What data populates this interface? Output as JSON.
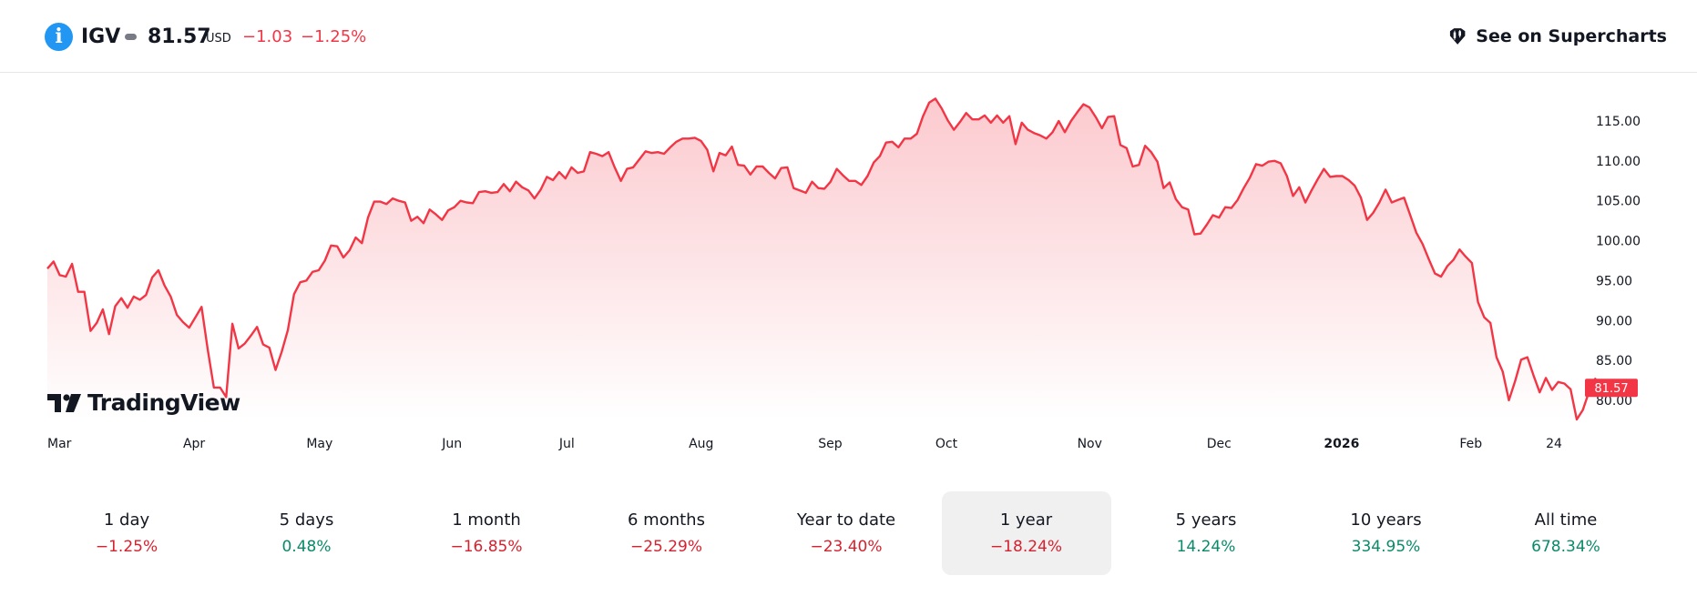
{
  "header": {
    "symbol": "IGV",
    "price": "81.57",
    "currency": "USD",
    "change": "−1.03",
    "change_pct": "−1.25%",
    "supercharts_label": "See on Supercharts",
    "info_icon": "i"
  },
  "branding": {
    "logo_text": "TradingView"
  },
  "colors": {
    "line": "#f23645",
    "fill_top": "#fbc7cc",
    "negative": "#d6212f",
    "positive": "#0a8a6a",
    "info": "#2196f3"
  },
  "chart_data": {
    "type": "area",
    "title": "",
    "xlabel": "",
    "ylabel": "",
    "ylim": [
      77,
      118.5
    ],
    "y_ticks": [
      "115.00",
      "110.00",
      "105.00",
      "100.00",
      "95.00",
      "90.00",
      "85.00",
      "80.00"
    ],
    "y_tick_values": [
      115,
      110,
      105,
      100,
      95,
      90,
      85,
      80
    ],
    "x_ticks": [
      {
        "label": "Mar",
        "i": 0
      },
      {
        "label": "Apr",
        "i": 22
      },
      {
        "label": "May",
        "i": 42
      },
      {
        "label": "Jun",
        "i": 64
      },
      {
        "label": "Jul",
        "i": 83
      },
      {
        "label": "Aug",
        "i": 104
      },
      {
        "label": "Sep",
        "i": 125
      },
      {
        "label": "Oct",
        "i": 144
      },
      {
        "label": "Nov",
        "i": 167
      },
      {
        "label": "Dec",
        "i": 188
      },
      {
        "label": "2026",
        "i": 207,
        "bold": true
      },
      {
        "label": "Feb",
        "i": 229
      },
      {
        "label": "24",
        "i": 243
      }
    ],
    "last_value_label": "81.57",
    "series": [
      {
        "values": [
          96.5,
          97.4,
          95.7,
          95.5,
          97.1,
          93.6,
          93.6,
          88.7,
          89.7,
          91.4,
          88.3,
          91.8,
          92.8,
          91.6,
          93.0,
          92.6,
          93.2,
          95.4,
          96.3,
          94.4,
          93.0,
          90.7,
          89.8,
          89.1,
          90.4,
          91.7,
          86.4,
          81.6,
          81.6,
          80.4,
          89.6,
          86.5,
          87.1,
          88.1,
          89.2,
          87.0,
          86.6,
          83.8,
          86.1,
          88.8,
          93.3,
          94.8,
          95.0,
          96.1,
          96.3,
          97.5,
          99.4,
          99.3,
          97.9,
          98.8,
          100.4,
          99.7,
          102.9,
          104.9,
          104.9,
          104.6,
          105.3,
          105.0,
          104.8,
          102.5,
          103.0,
          102.2,
          103.9,
          103.3,
          102.6,
          103.8,
          104.2,
          105.0,
          104.8,
          104.7,
          106.1,
          106.2,
          106.0,
          106.1,
          107.1,
          106.2,
          107.4,
          106.7,
          106.3,
          105.3,
          106.4,
          108.0,
          107.6,
          108.6,
          107.8,
          109.2,
          108.5,
          108.7,
          111.1,
          110.9,
          110.6,
          111.1,
          109.2,
          107.5,
          109.0,
          109.2,
          110.2,
          111.2,
          111.0,
          111.1,
          110.9,
          111.7,
          112.4,
          112.8,
          112.8,
          112.9,
          112.5,
          111.4,
          108.7,
          111.0,
          110.7,
          111.8,
          109.5,
          109.4,
          108.3,
          109.3,
          109.3,
          108.5,
          107.8,
          109.1,
          109.2,
          106.6,
          106.3,
          106.0,
          107.4,
          106.6,
          106.5,
          107.4,
          109.0,
          108.2,
          107.5,
          107.5,
          107.0,
          108.1,
          109.8,
          110.6,
          112.3,
          112.4,
          111.7,
          112.8,
          112.8,
          113.4,
          115.6,
          117.3,
          117.8,
          116.6,
          115.1,
          113.9,
          114.9,
          116.0,
          115.2,
          115.2,
          115.7,
          114.8,
          115.7,
          114.8,
          115.6,
          112.1,
          114.8,
          113.9,
          113.5,
          113.2,
          112.8,
          113.6,
          115.0,
          113.6,
          115.0,
          116.1,
          117.1,
          116.7,
          115.5,
          114.1,
          115.5,
          115.6,
          112.0,
          111.6,
          109.3,
          109.5,
          111.9,
          111.1,
          109.9,
          106.6,
          107.3,
          105.2,
          104.2,
          103.9,
          100.8,
          100.9,
          102.0,
          103.2,
          102.9,
          104.2,
          104.1,
          105.1,
          106.6,
          107.9,
          109.6,
          109.4,
          109.9,
          110.0,
          109.7,
          108.1,
          105.6,
          106.7,
          104.8,
          106.3,
          107.7,
          109.0,
          108.0,
          108.1,
          108.1,
          107.6,
          106.9,
          105.4,
          102.6,
          103.5,
          104.8,
          106.4,
          104.8,
          105.1,
          105.4,
          103.2,
          101.0,
          99.6,
          97.7,
          95.9,
          95.5,
          96.8,
          97.6,
          98.9,
          98.0,
          97.2,
          92.3,
          90.4,
          89.7,
          85.4,
          83.6,
          80.0,
          82.4,
          85.1,
          85.4,
          83.1,
          81.0,
          82.8,
          81.3,
          82.3,
          82.1,
          81.4,
          77.6,
          78.8,
          81.1,
          82.7,
          81.57
        ]
      }
    ],
    "grid": false,
    "legend": "none"
  },
  "periods": [
    {
      "label": "1 day",
      "value": "−1.25%",
      "trend": "neg",
      "active": false
    },
    {
      "label": "5 days",
      "value": "0.48%",
      "trend": "pos",
      "active": false
    },
    {
      "label": "1 month",
      "value": "−16.85%",
      "trend": "neg",
      "active": false
    },
    {
      "label": "6 months",
      "value": "−25.29%",
      "trend": "neg",
      "active": false
    },
    {
      "label": "Year to date",
      "value": "−23.40%",
      "trend": "neg",
      "active": false
    },
    {
      "label": "1 year",
      "value": "−18.24%",
      "trend": "neg",
      "active": true
    },
    {
      "label": "5 years",
      "value": "14.24%",
      "trend": "pos",
      "active": false
    },
    {
      "label": "10 years",
      "value": "334.95%",
      "trend": "pos",
      "active": false
    },
    {
      "label": "All time",
      "value": "678.34%",
      "trend": "pos",
      "active": false
    }
  ]
}
